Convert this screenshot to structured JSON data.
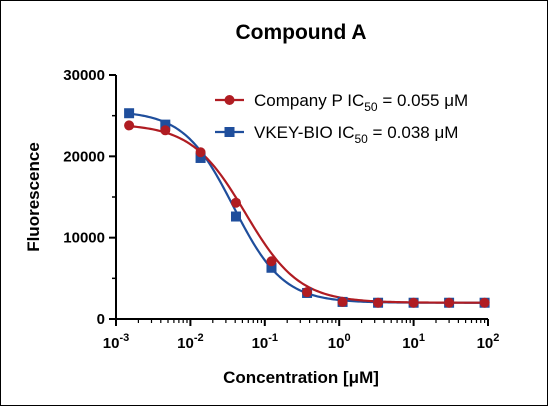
{
  "chart_data": {
    "type": "line",
    "title": "Compound A",
    "xlabel": "Concentration [μM]",
    "ylabel": "Fluorescence",
    "xscale": "log",
    "xlim": [
      0.001,
      100
    ],
    "ylim": [
      0,
      30000
    ],
    "x_ticks": [
      {
        "value": 0.001,
        "base": "10",
        "exp": "-3"
      },
      {
        "value": 0.01,
        "base": "10",
        "exp": "-2"
      },
      {
        "value": 0.1,
        "base": "10",
        "exp": "-1"
      },
      {
        "value": 1,
        "base": "10",
        "exp": "0"
      },
      {
        "value": 10,
        "base": "10",
        "exp": "1"
      },
      {
        "value": 100,
        "base": "10",
        "exp": "2"
      }
    ],
    "y_ticks": [
      {
        "value": 0,
        "label": "0"
      },
      {
        "value": 10000,
        "label": "10000"
      },
      {
        "value": 20000,
        "label": "20000"
      },
      {
        "value": 30000,
        "label": "30000"
      }
    ],
    "legend_position": "top-right",
    "series": [
      {
        "name_prefix": "Company P IC",
        "name_sub": "50",
        "name_suffix": " = 0.055 μM",
        "color": "#b01c22",
        "marker": "circle",
        "ic50": 0.055,
        "top": 24000,
        "bottom": 2000,
        "hill": 1.2,
        "x": [
          0.0015,
          0.0046,
          0.0137,
          0.041,
          0.123,
          0.37,
          1.11,
          3.33,
          10,
          30,
          90
        ],
        "y": [
          23800,
          23200,
          20500,
          14300,
          7100,
          3300,
          2100,
          2000,
          2000,
          2000,
          2000
        ]
      },
      {
        "name_prefix": "VKEY-BIO IC",
        "name_sub": "50",
        "name_suffix": " = 0.038 μM",
        "color": "#1f4e9c",
        "marker": "square",
        "ic50": 0.038,
        "top": 25600,
        "bottom": 2000,
        "hill": 1.3,
        "x": [
          0.0015,
          0.0046,
          0.0137,
          0.041,
          0.123,
          0.37,
          1.11,
          3.33,
          10,
          30,
          90
        ],
        "y": [
          25300,
          23900,
          19800,
          12600,
          6300,
          3200,
          2100,
          2000,
          2000,
          2000,
          2000
        ]
      }
    ]
  }
}
